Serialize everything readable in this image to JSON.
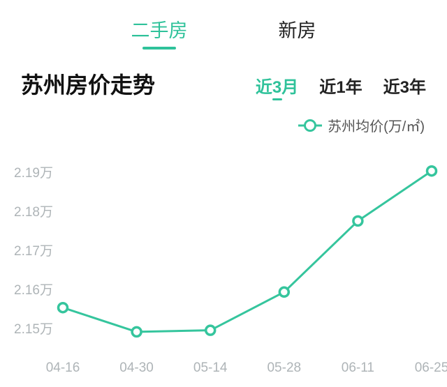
{
  "tabs": {
    "secondhand": "二手房",
    "new": "新房",
    "active": "secondhand"
  },
  "title": "苏州房价走势",
  "periods": {
    "p3m": "近3月",
    "p1y": "近1年",
    "p3y": "近3年",
    "active": "p3m"
  },
  "legend": {
    "label": "苏州均价(万/㎡)"
  },
  "chart": {
    "type": "line",
    "x_labels": [
      "04-16",
      "04-30",
      "05-14",
      "05-28",
      "06-11",
      "06-25"
    ],
    "y_values": [
      2.1555,
      2.1493,
      2.1497,
      2.1595,
      2.1777,
      2.1905
    ],
    "y_ticks": [
      2.15,
      2.16,
      2.17,
      2.18,
      2.19
    ],
    "y_tick_labels": [
      "2.15万",
      "2.16万",
      "2.17万",
      "2.18万",
      "2.19万"
    ],
    "ylim": [
      2.145,
      2.195
    ],
    "line_color": "#35c59d",
    "line_width": 3,
    "marker_radius": 6.5,
    "marker_fill": "#ffffff",
    "marker_stroke": "#35c59d",
    "marker_stroke_width": 3.5,
    "axis_label_color": "#aeb4b7",
    "axis_label_fontsize": 19,
    "background_color": "#ffffff",
    "tab_active_color": "#2fc29a",
    "text_color": "#222222",
    "title_fontsize": 32
  }
}
